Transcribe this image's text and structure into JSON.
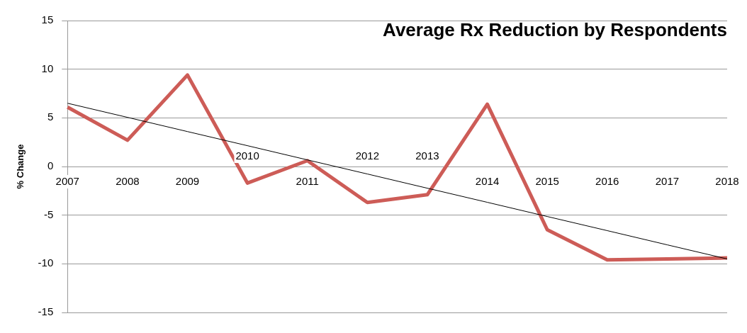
{
  "chart_data": {
    "type": "line",
    "title": "Average Rx Reduction by Respondents",
    "ylabel": "% Change",
    "categories": [
      "2007",
      "2008",
      "2009",
      "2010",
      "2011",
      "2012",
      "2013",
      "2014",
      "2015",
      "2016",
      "2017",
      "2018"
    ],
    "series": [
      {
        "color": "#cd5c57",
        "values": [
          6.1,
          2.7,
          9.4,
          -1.7,
          0.6,
          -3.7,
          -2.9,
          6.4,
          -6.5,
          -9.6,
          -9.5,
          -9.4
        ]
      },
      {
        "type": "line",
        "color": "#000000",
        "values": [
          6.5,
          5.05,
          3.59,
          2.14,
          0.68,
          -0.77,
          -2.23,
          -3.68,
          -5.14,
          -6.59,
          -8.05,
          -9.5
        ]
      }
    ],
    "ylim": [
      -15,
      15
    ],
    "yticks": [
      -15,
      -10,
      -5,
      0,
      5,
      10,
      15
    ],
    "grid": "y",
    "legend": false,
    "marker": "none"
  }
}
